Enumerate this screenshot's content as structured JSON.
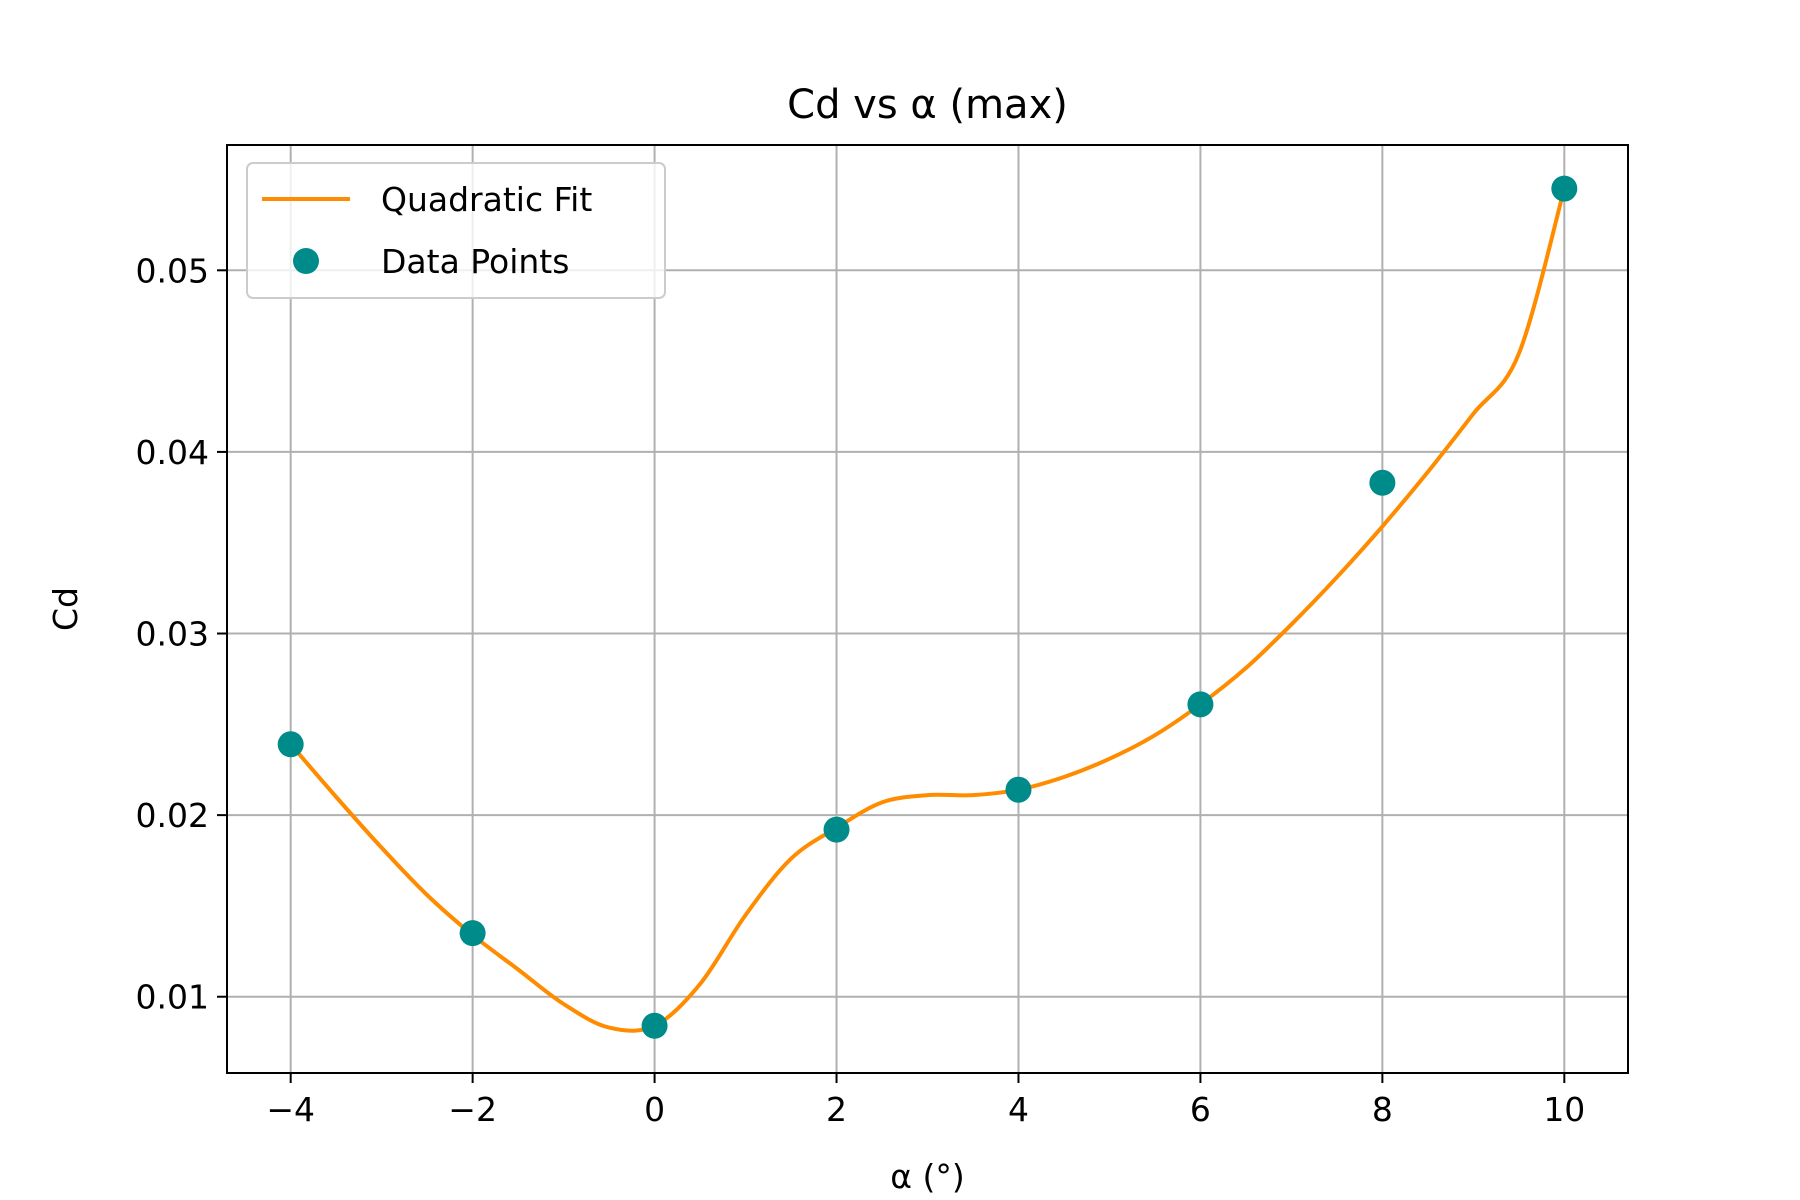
{
  "chart_data": {
    "type": "line",
    "title": "Cd vs α (max)",
    "xlabel": "α (°)",
    "ylabel": "Cd",
    "xlim": [
      -4.7,
      10.7
    ],
    "ylim": [
      0.0058,
      0.0569
    ],
    "xticks": [
      -4,
      -2,
      0,
      2,
      4,
      6,
      8,
      10
    ],
    "xtick_labels": [
      "−4",
      "−2",
      "0",
      "2",
      "4",
      "6",
      "8",
      "10"
    ],
    "yticks": [
      0.01,
      0.02,
      0.03,
      0.04,
      0.05
    ],
    "ytick_labels": [
      "0.01",
      "0.02",
      "0.03",
      "0.04",
      "0.05"
    ],
    "grid": true,
    "legend_position": "top-left",
    "series": [
      {
        "name": "Quadratic Fit",
        "kind": "line",
        "color": "#ff8c00",
        "x": [
          -4,
          -3.5,
          -3,
          -2.5,
          -2,
          -1.5,
          -1,
          -0.5,
          0,
          0.5,
          1,
          1.5,
          2,
          2.5,
          3,
          3.5,
          4,
          4.5,
          5,
          5.5,
          6,
          6.5,
          7,
          7.5,
          8,
          8.5,
          9,
          9.5,
          10
        ],
        "y": [
          0.0239,
          0.021,
          0.0182,
          0.0156,
          0.0134,
          0.0115,
          0.0096,
          0.0083,
          0.0084,
          0.0107,
          0.0145,
          0.0176,
          0.0193,
          0.0207,
          0.0211,
          0.0211,
          0.0214,
          0.0221,
          0.0231,
          0.0244,
          0.0261,
          0.0281,
          0.0305,
          0.0331,
          0.0359,
          0.0389,
          0.0421,
          0.0454,
          0.0545
        ]
      },
      {
        "name": "Data Points",
        "kind": "scatter",
        "color": "#008b8b",
        "x": [
          -4,
          -2,
          0,
          2,
          4,
          6,
          8,
          10
        ],
        "y": [
          0.0239,
          0.0135,
          0.0084,
          0.0192,
          0.0214,
          0.0261,
          0.0383,
          0.0545
        ]
      }
    ]
  }
}
